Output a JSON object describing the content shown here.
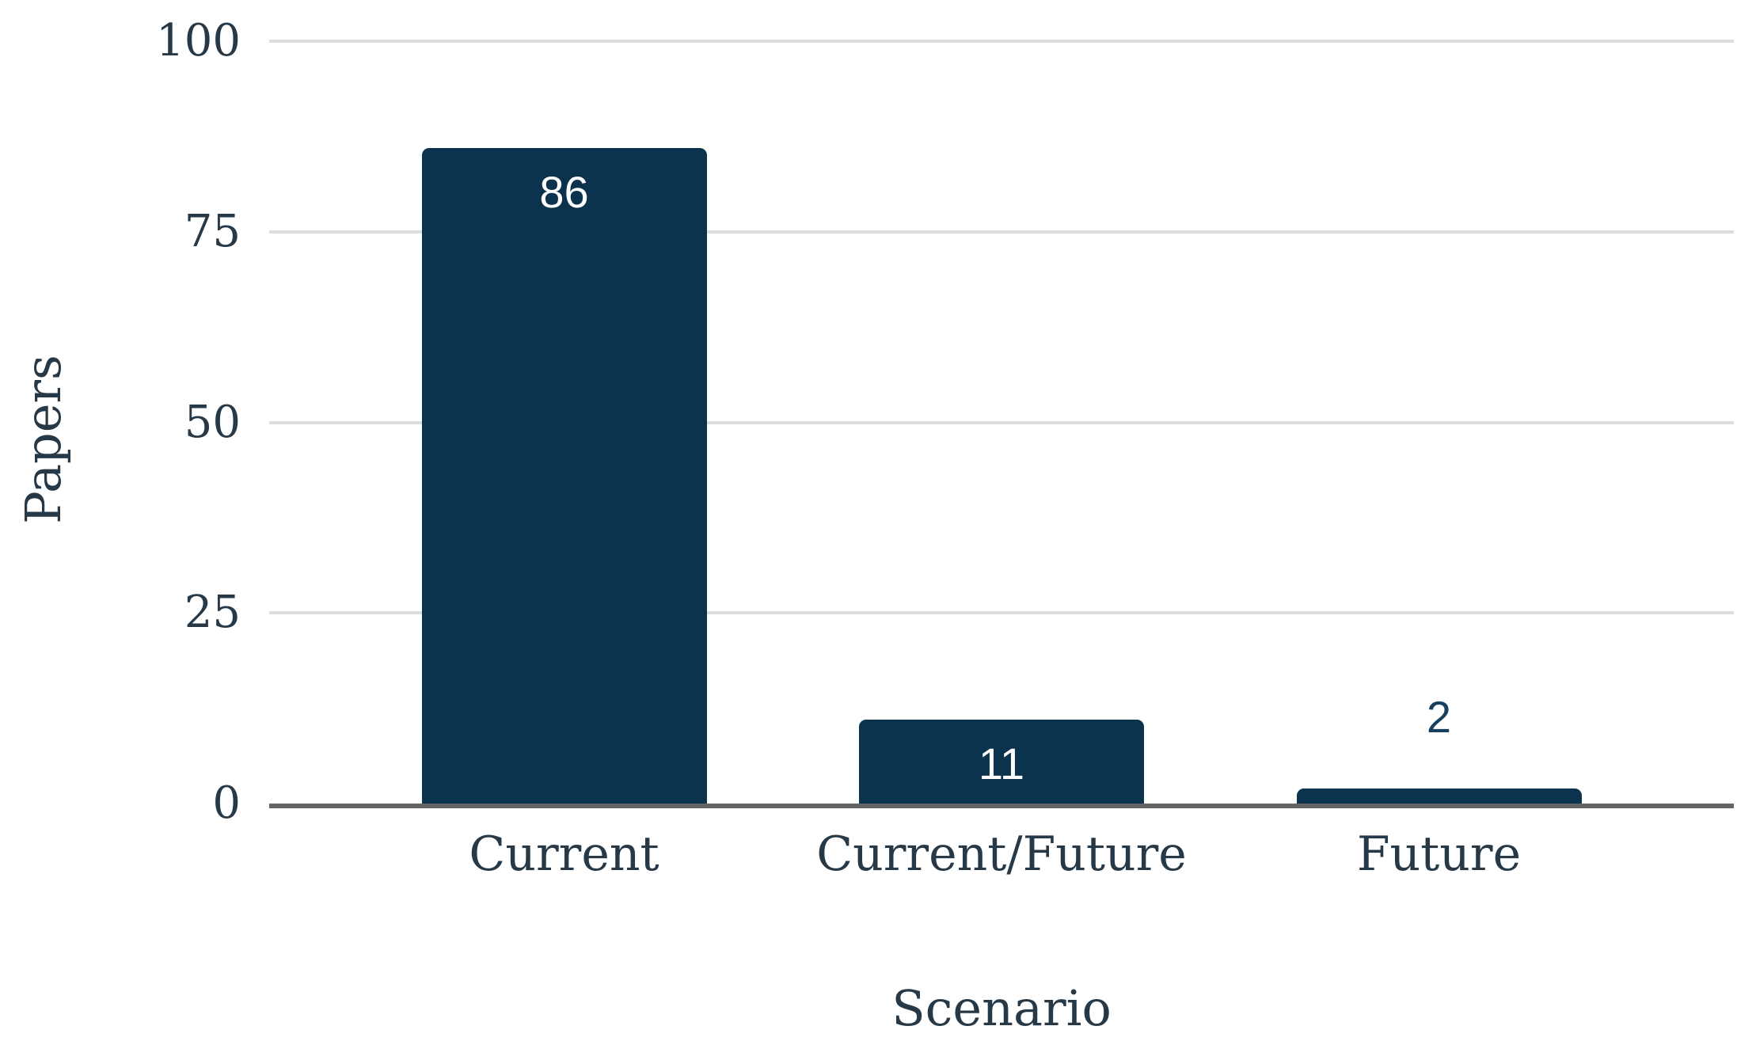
{
  "chart_data": {
    "type": "bar",
    "categories": [
      "Current",
      "Current/Future",
      "Future"
    ],
    "values": [
      86,
      11,
      2
    ],
    "value_label_positions": [
      "inside",
      "inside",
      "above"
    ],
    "xlabel": "Scenario",
    "ylabel": "Papers",
    "ylim": [
      0,
      100
    ],
    "yticks": [
      0,
      25,
      50,
      75,
      100
    ],
    "grid": true,
    "legend": false,
    "colors": {
      "bar": "#0c334e",
      "value_label_inside": "#ffffff",
      "value_label_above": "#16405e",
      "axis_text": "#273947",
      "gridline": "#dcdcdc",
      "axis_line": "#646464",
      "background": "#ffffff"
    }
  }
}
